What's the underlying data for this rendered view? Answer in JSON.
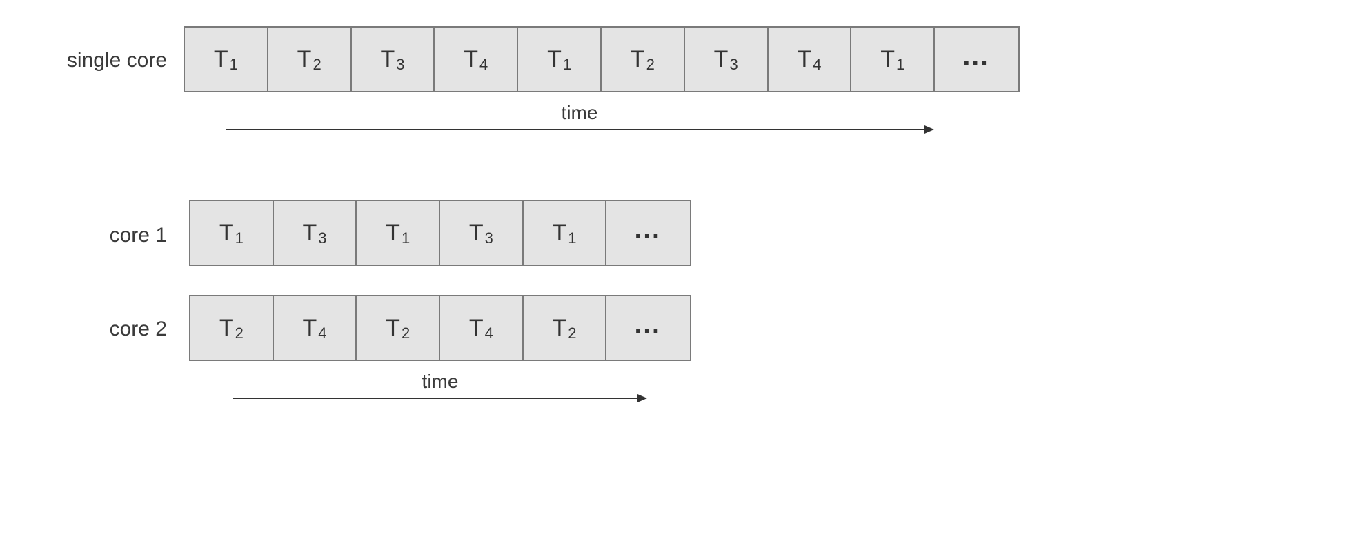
{
  "single_core": {
    "label": "single core",
    "cells": [
      {
        "t": "T",
        "n": "1"
      },
      {
        "t": "T",
        "n": "2"
      },
      {
        "t": "T",
        "n": "3"
      },
      {
        "t": "T",
        "n": "4"
      },
      {
        "t": "T",
        "n": "1"
      },
      {
        "t": "T",
        "n": "2"
      },
      {
        "t": "T",
        "n": "3"
      },
      {
        "t": "T",
        "n": "4"
      },
      {
        "t": "T",
        "n": "1"
      },
      {
        "t": "…",
        "n": ""
      }
    ],
    "axis_label": "time"
  },
  "core1": {
    "label": "core 1",
    "cells": [
      {
        "t": "T",
        "n": "1"
      },
      {
        "t": "T",
        "n": "3"
      },
      {
        "t": "T",
        "n": "1"
      },
      {
        "t": "T",
        "n": "3"
      },
      {
        "t": "T",
        "n": "1"
      },
      {
        "t": "…",
        "n": ""
      }
    ]
  },
  "core2": {
    "label": "core 2",
    "cells": [
      {
        "t": "T",
        "n": "2"
      },
      {
        "t": "T",
        "n": "4"
      },
      {
        "t": "T",
        "n": "2"
      },
      {
        "t": "T",
        "n": "4"
      },
      {
        "t": "T",
        "n": "2"
      },
      {
        "t": "…",
        "n": ""
      }
    ],
    "axis_label": "time"
  }
}
